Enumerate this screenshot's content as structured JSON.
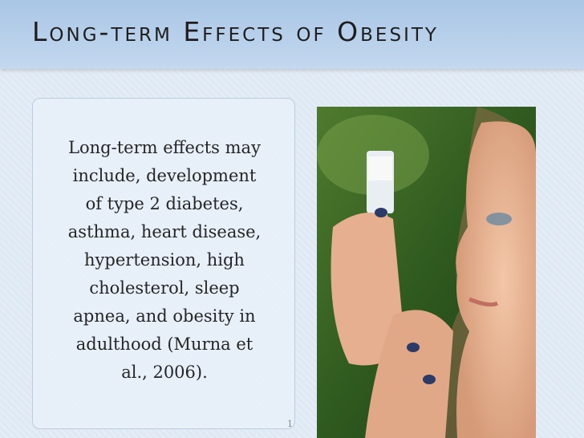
{
  "title": "Long-term Effects of Obesity",
  "body": {
    "lines": [
      "Long-term effects may",
      "include, development",
      "of type 2 diabetes,",
      "asthma, heart disease,",
      "hypertension, high",
      "cholesterol, sleep",
      "apnea, and obesity in",
      "adulthood (Murna et",
      "al., 2006)."
    ]
  },
  "slide_number": "1"
}
